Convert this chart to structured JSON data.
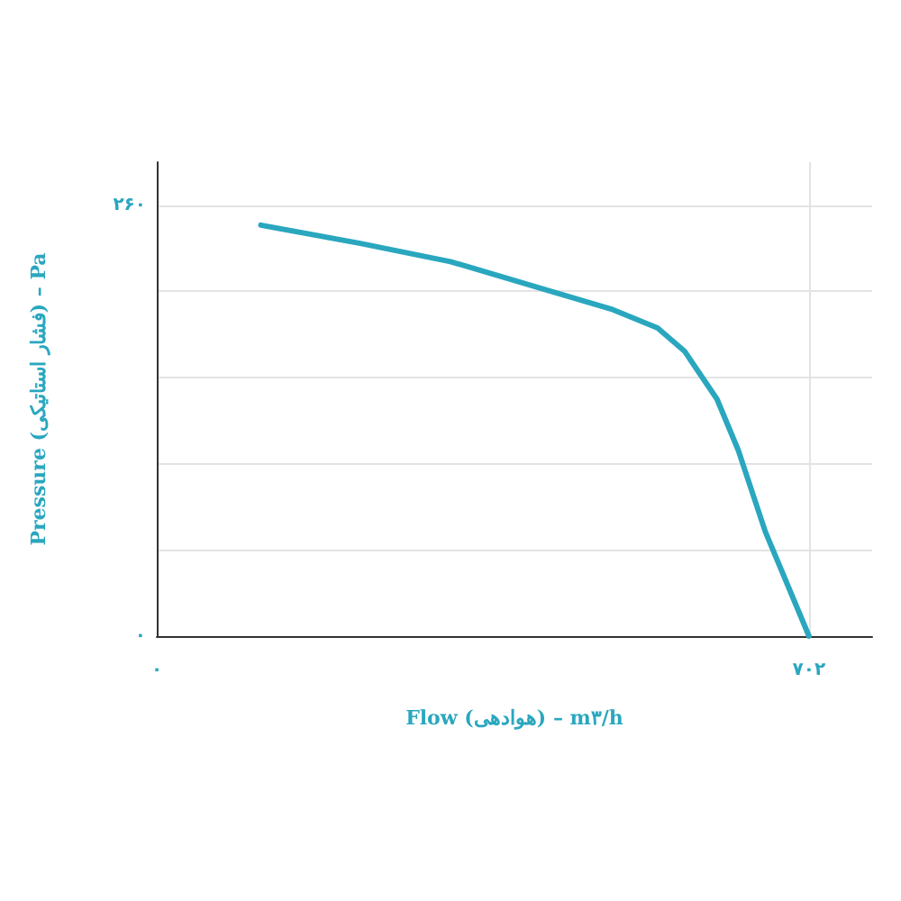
{
  "chart_data": {
    "type": "line",
    "xlabel": "Flow (هوادهی) – m۳/h",
    "ylabel": "Pressure (فشار استاتیکی) – Pa",
    "xlim": [
      0,
      770
    ],
    "ylim": [
      0,
      286
    ],
    "xticks": [
      {
        "value": 0,
        "label": "۰"
      },
      {
        "value": 702,
        "label": "۷۰۲"
      }
    ],
    "yticks": [
      {
        "value": 0,
        "label": "۰"
      },
      {
        "value": 52,
        "label": null
      },
      {
        "value": 104,
        "label": null
      },
      {
        "value": 156,
        "label": null
      },
      {
        "value": 208,
        "label": null
      },
      {
        "value": 260,
        "label": "۲۶۰"
      }
    ],
    "grid": true,
    "marker": "none",
    "line_style": "solid",
    "series": [
      {
        "color": "#2aa7bf",
        "x": [
          112,
          219,
          316,
          413,
          491,
          539,
          568,
          603,
          626,
          655,
          702
        ],
        "values": [
          248,
          237,
          226,
          210,
          197,
          186,
          172,
          143,
          112,
          63,
          0
        ]
      }
    ]
  }
}
